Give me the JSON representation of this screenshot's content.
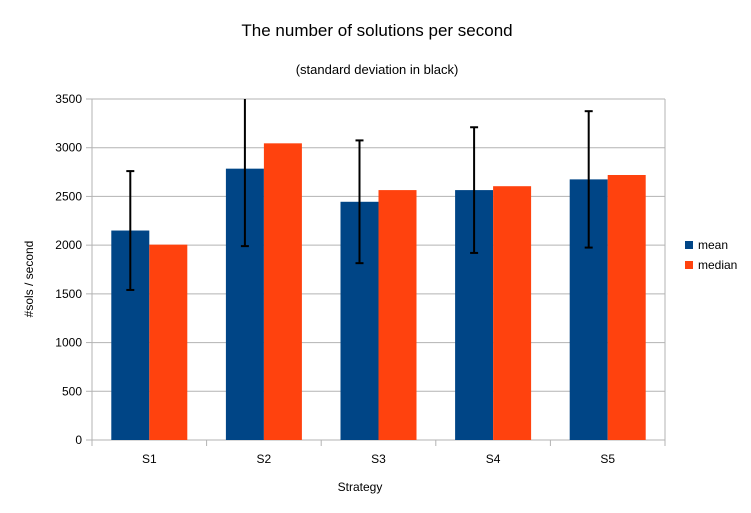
{
  "chart_data": {
    "type": "bar",
    "title": "The number of solutions per second",
    "subtitle": "(standard deviation in black)",
    "xlabel": "Strategy",
    "ylabel": "#sols / second",
    "categories": [
      "S1",
      "S2",
      "S3",
      "S4",
      "S5"
    ],
    "ylim": [
      0,
      3500
    ],
    "yticks": [
      0,
      500,
      1000,
      1500,
      2000,
      2500,
      3000,
      3500
    ],
    "ytick_labels": [
      "0",
      "500",
      "1000",
      "1500",
      "2000",
      "2500",
      "3000",
      "3500"
    ],
    "grid": true,
    "legend_position": "right",
    "series": [
      {
        "name": "mean",
        "color": "#004586",
        "values": [
          2150,
          2785,
          2445,
          2565,
          2675
        ],
        "std": [
          610,
          795,
          630,
          645,
          700
        ]
      },
      {
        "name": "median",
        "color": "#ff420e",
        "values": [
          2005,
          3045,
          2565,
          2605,
          2720
        ]
      }
    ]
  }
}
